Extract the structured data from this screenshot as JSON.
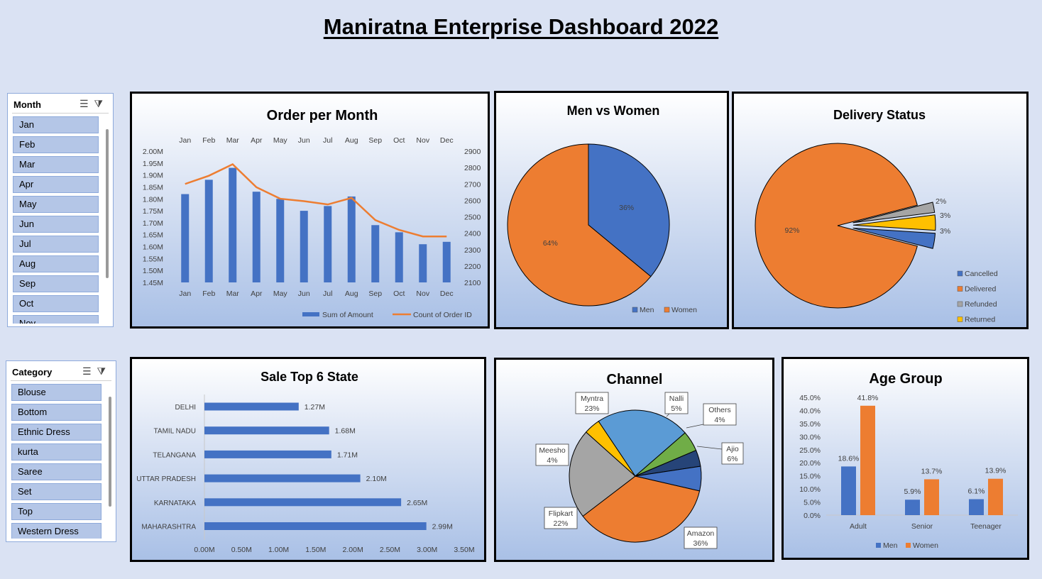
{
  "dashboard_title": "Maniratna Enterprise Dashboard 2022",
  "slicers": {
    "month": {
      "title": "Month",
      "items": [
        "Jan",
        "Feb",
        "Mar",
        "Apr",
        "May",
        "Jun",
        "Jul",
        "Aug",
        "Sep",
        "Oct",
        "Nov"
      ]
    },
    "category": {
      "title": "Category",
      "items": [
        "Blouse",
        "Bottom",
        "Ethnic Dress",
        "kurta",
        "Saree",
        "Set",
        "Top",
        "Western Dress"
      ]
    }
  },
  "colors": {
    "blue": "#4472c4",
    "orange": "#ed7d31",
    "gray": "#a5a5a5",
    "yellow": "#ffc000",
    "light_blue": "#5b9bd5",
    "green": "#70ad47",
    "navy": "#264478"
  },
  "chart_data": [
    {
      "id": "orders",
      "type": "bar",
      "title": "Order per Month",
      "categories": [
        "Jan",
        "Feb",
        "Mar",
        "Apr",
        "May",
        "Jun",
        "Jul",
        "Aug",
        "Sep",
        "Oct",
        "Nov",
        "Dec"
      ],
      "series": [
        {
          "name": "Sum of Amount",
          "type": "bar",
          "axis": "left",
          "values": [
            1.82,
            1.88,
            1.93,
            1.83,
            1.8,
            1.75,
            1.77,
            1.81,
            1.69,
            1.66,
            1.61,
            1.62
          ]
        },
        {
          "name": "Count of Order ID",
          "type": "line",
          "axis": "right",
          "values": [
            2700,
            2750,
            2820,
            2680,
            2610,
            2595,
            2575,
            2615,
            2480,
            2420,
            2380,
            2380
          ]
        }
      ],
      "y_left": {
        "min": 1.45,
        "max": 2.0,
        "step": 0.05,
        "ticks": [
          "1.45M",
          "1.50M",
          "1.55M",
          "1.60M",
          "1.65M",
          "1.70M",
          "1.75M",
          "1.80M",
          "1.85M",
          "1.90M",
          "1.95M",
          "2.00M"
        ]
      },
      "y_right": {
        "min": 2100,
        "max": 2900,
        "ticks": [
          "2100",
          "2200",
          "2300",
          "2400",
          "2500",
          "2600",
          "2700",
          "2800",
          "2900"
        ]
      },
      "legend": "bottom-right"
    },
    {
      "id": "gender",
      "type": "pie",
      "title": "Men vs Women",
      "labels": [
        "Men",
        "Women"
      ],
      "values": [
        36,
        64
      ],
      "data_labels": [
        "36%",
        "64%"
      ],
      "legend": "bottom-right"
    },
    {
      "id": "delivery",
      "type": "pie",
      "title": "Delivery Status",
      "labels": [
        "Cancelled",
        "Delivered",
        "Refunded",
        "Returned"
      ],
      "values": [
        3,
        92,
        2,
        3
      ],
      "data_labels": [
        "3%",
        "92%",
        "2%",
        "3%"
      ],
      "legend": "bottom-right"
    },
    {
      "id": "states",
      "type": "bar",
      "orientation": "horizontal",
      "title": "Sale Top 6 State",
      "categories": [
        "DELHI",
        "TAMIL NADU",
        "TELANGANA",
        "UTTAR PRADESH",
        "KARNATAKA",
        "MAHARASHTRA"
      ],
      "values": [
        1.27,
        1.68,
        1.71,
        2.1,
        2.65,
        2.99
      ],
      "data_labels": [
        "1.27M",
        "1.68M",
        "1.71M",
        "2.10M",
        "2.65M",
        "2.99M"
      ],
      "x_axis": {
        "min": 0,
        "max": 3.5,
        "ticks": [
          "0.00M",
          "0.50M",
          "1.00M",
          "1.50M",
          "2.00M",
          "2.50M",
          "3.00M",
          "3.50M"
        ]
      }
    },
    {
      "id": "channel",
      "type": "pie",
      "title": "Channel",
      "labels": [
        "Amazon",
        "Flipkart",
        "Meesho",
        "Myntra",
        "Nalli",
        "Others",
        "Ajio"
      ],
      "values": [
        36,
        22,
        4,
        23,
        5,
        4,
        6
      ],
      "data_labels": [
        "36%",
        "22%",
        "4%",
        "23%",
        "5%",
        "4%",
        "6%"
      ]
    },
    {
      "id": "age",
      "type": "bar",
      "title": "Age Group",
      "categories": [
        "Adult",
        "Senior",
        "Teenager"
      ],
      "series": [
        {
          "name": "Men",
          "values": [
            18.6,
            5.9,
            6.1
          ],
          "data_labels": [
            "18.6%",
            "5.9%",
            "6.1%"
          ]
        },
        {
          "name": "Women",
          "values": [
            41.8,
            13.7,
            13.9
          ],
          "data_labels": [
            "41.8%",
            "13.7%",
            "13.9%"
          ]
        }
      ],
      "y_axis": {
        "min": 0,
        "max": 45,
        "ticks": [
          "0.0%",
          "5.0%",
          "10.0%",
          "15.0%",
          "20.0%",
          "25.0%",
          "30.0%",
          "35.0%",
          "40.0%",
          "45.0%"
        ]
      },
      "legend": "bottom"
    }
  ]
}
